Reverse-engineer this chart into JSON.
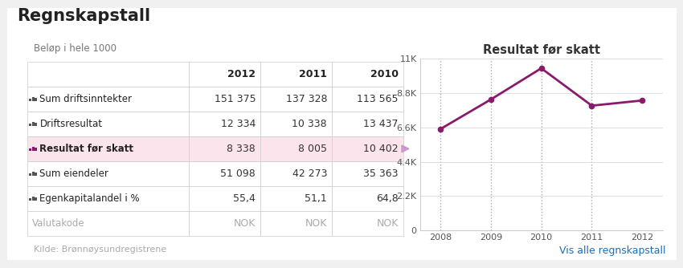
{
  "title": "Regnskapstall",
  "subtitle": "Beløp i hele 1000",
  "table_headers": [
    "",
    "2012",
    "2011",
    "2010"
  ],
  "table_rows": [
    [
      "Sum driftsinntekter",
      "151 375",
      "137 328",
      "113 565"
    ],
    [
      "Driftsresultat",
      "12 334",
      "10 338",
      "13 437"
    ],
    [
      "Resultat før skatt",
      "8 338",
      "8 005",
      "10 402"
    ],
    [
      "Sum eiendeler",
      "51 098",
      "42 273",
      "35 363"
    ],
    [
      "Egenkapitalandel i %",
      "55,4",
      "51,1",
      "64,8"
    ],
    [
      "Valutakode",
      "NOK",
      "NOK",
      "NOK"
    ]
  ],
  "highlighted_row": 2,
  "highlight_color": "#fce4ec",
  "chart_title": "Resultat før skatt",
  "chart_years": [
    2008,
    2009,
    2010,
    2011,
    2012
  ],
  "chart_values": [
    6500,
    8400,
    10402,
    8005,
    8338
  ],
  "line_color": "#8B1A6B",
  "yticks": [
    0,
    2200,
    4400,
    6600,
    8800,
    11000
  ],
  "ytick_labels": [
    "0",
    "2.2K",
    "4.4K",
    "6.6K",
    "8.8K",
    "11K"
  ],
  "bg_color": "#f0f0f0",
  "card_color": "#ffffff",
  "source_text": "Kilde: Brønnøysundregistrene",
  "link_text": "Vis alle regnskapstall",
  "link_color": "#1a6fbb"
}
